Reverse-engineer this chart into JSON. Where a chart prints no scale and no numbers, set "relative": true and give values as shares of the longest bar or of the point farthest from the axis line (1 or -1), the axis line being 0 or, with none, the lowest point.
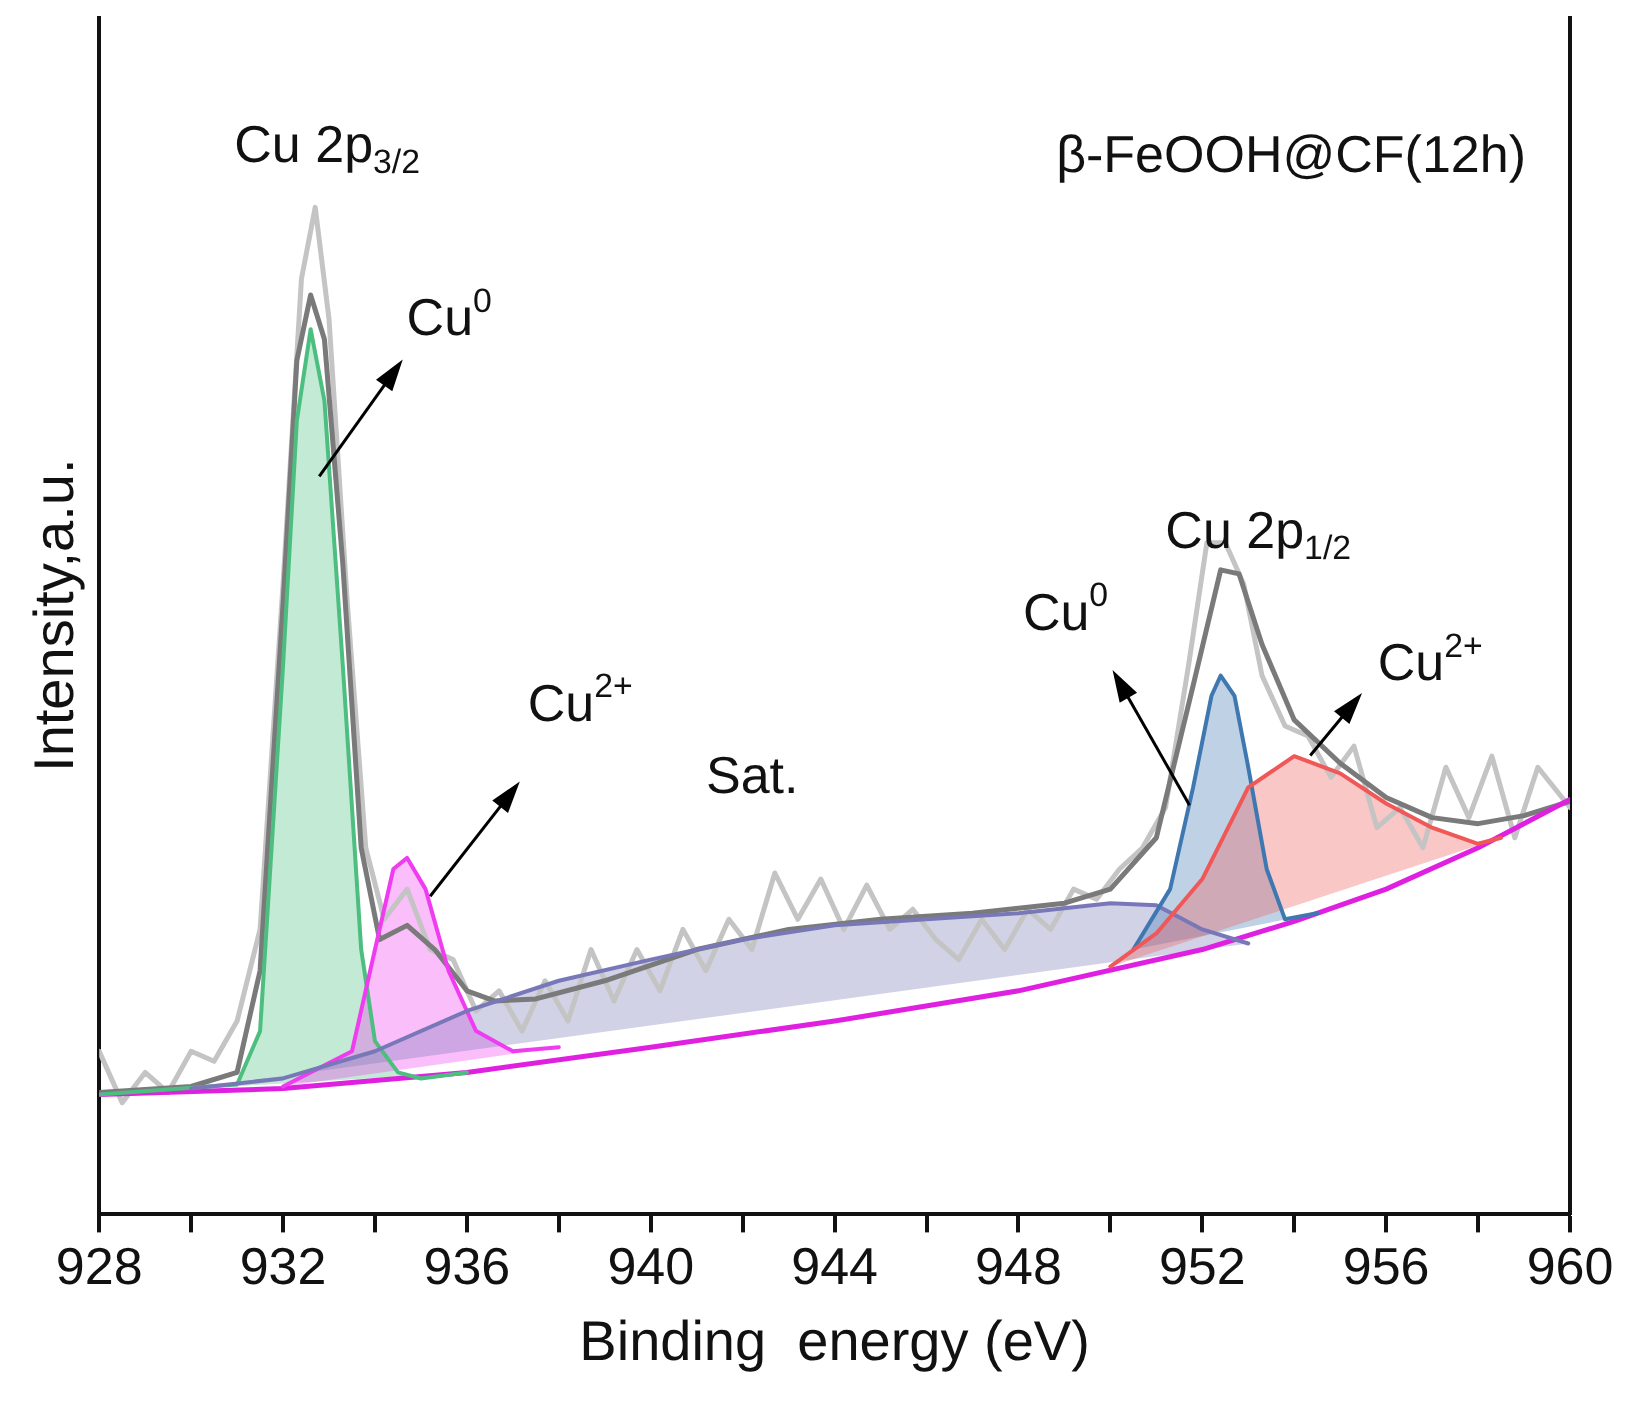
{
  "chart_data": {
    "type": "line",
    "title": "β-FeOOH@CF(12h)",
    "xlabel": "Binding  energy (eV)",
    "ylabel": "Intensity,a.u.",
    "relative": true,
    "grid": false,
    "legend": false,
    "marker": "none",
    "line_style": "solid",
    "xlim": [
      928,
      960
    ],
    "xticks": [
      928,
      {
        "value": 930,
        "label": null
      },
      932,
      {
        "value": 934,
        "label": null
      },
      936,
      {
        "value": 938,
        "label": null
      },
      940,
      {
        "value": 942,
        "label": null
      },
      944,
      {
        "value": 946,
        "label": null
      },
      948,
      {
        "value": 950,
        "label": null
      },
      952,
      {
        "value": 954,
        "label": null
      },
      956,
      {
        "value": 958,
        "label": null
      },
      960
    ],
    "annotations": [
      "Cu 2p$_{3/2}$",
      "Cu$^{0}$",
      "Cu$^{2+}$",
      "Sat.",
      "Cu 2p$_{1/2}$",
      "Cu$^{0}$",
      "Cu$^{2+}$"
    ],
    "series": [
      {
        "color": "#c4c4c4",
        "x": [
          928,
          928.5,
          929,
          929.5,
          930,
          930.5,
          931,
          931.5,
          932,
          932.4,
          932.7,
          933,
          933.4,
          933.8,
          934.2,
          934.7,
          935.2,
          935.7,
          936.2,
          936.7,
          937.2,
          937.7,
          938.2,
          938.7,
          939.2,
          939.7,
          940.2,
          940.7,
          941.2,
          941.7,
          942.2,
          942.7,
          943.2,
          943.7,
          944.2,
          944.7,
          945.2,
          945.7,
          946.2,
          946.7,
          947.2,
          947.7,
          948.2,
          948.7,
          949.2,
          949.7,
          950.2,
          950.7,
          951.2,
          951.7,
          952.1,
          952.5,
          952.9,
          953.3,
          953.8,
          954.3,
          954.8,
          955.3,
          955.8,
          956.3,
          956.8,
          957.3,
          957.8,
          958.3,
          958.8,
          959.3,
          960
        ],
        "values": [
          0.162,
          0.111,
          0.141,
          0.121,
          0.162,
          0.152,
          0.192,
          0.283,
          0.626,
          0.929,
          1,
          0.889,
          0.606,
          0.364,
          0.293,
          0.323,
          0.263,
          0.253,
          0.202,
          0.222,
          0.182,
          0.232,
          0.192,
          0.263,
          0.212,
          0.263,
          0.222,
          0.283,
          0.242,
          0.293,
          0.263,
          0.339,
          0.293,
          0.333,
          0.283,
          0.327,
          0.283,
          0.303,
          0.273,
          0.253,
          0.293,
          0.263,
          0.303,
          0.283,
          0.323,
          0.313,
          0.343,
          0.364,
          0.404,
          0.545,
          0.667,
          0.667,
          0.626,
          0.535,
          0.485,
          0.475,
          0.434,
          0.465,
          0.384,
          0.404,
          0.364,
          0.444,
          0.394,
          0.455,
          0.374,
          0.444,
          0.404
        ]
      },
      {
        "color": "#7a7a7a",
        "x": [
          928,
          930,
          931,
          931.5,
          932,
          932.3,
          932.6,
          932.9,
          933.3,
          933.7,
          934.1,
          934.7,
          935.3,
          936,
          936.6,
          937.5,
          939,
          941,
          943,
          945,
          947,
          949,
          950,
          951,
          951.8,
          952.4,
          952.8,
          953.3,
          954,
          955,
          956,
          957,
          958,
          959,
          960
        ],
        "values": [
          0.121,
          0.127,
          0.141,
          0.242,
          0.606,
          0.848,
          0.913,
          0.869,
          0.646,
          0.364,
          0.273,
          0.287,
          0.263,
          0.222,
          0.212,
          0.214,
          0.232,
          0.263,
          0.283,
          0.293,
          0.299,
          0.309,
          0.323,
          0.374,
          0.525,
          0.64,
          0.636,
          0.566,
          0.491,
          0.448,
          0.414,
          0.394,
          0.388,
          0.396,
          0.41
        ]
      },
      {
        "color": "#e020e0",
        "x": [
          928,
          932,
          936,
          940,
          944,
          948,
          952,
          954,
          956,
          958,
          960
        ],
        "values": [
          0.119,
          0.125,
          0.141,
          0.166,
          0.192,
          0.222,
          0.263,
          0.291,
          0.323,
          0.364,
          0.412
        ]
      },
      {
        "type": "area",
        "color": "#4cbf80",
        "x": [
          928,
          931,
          931.5,
          932,
          932.3,
          932.6,
          932.9,
          933.3,
          933.7,
          934,
          934.5,
          935,
          936
        ],
        "values": [
          0.119,
          0.129,
          0.182,
          0.545,
          0.788,
          0.879,
          0.808,
          0.545,
          0.263,
          0.172,
          0.141,
          0.135,
          0.141
        ]
      },
      {
        "type": "area",
        "color": "#f03cf0",
        "x": [
          932,
          933.5,
          934,
          934.4,
          934.7,
          935.1,
          935.6,
          936.2,
          937,
          938
        ],
        "values": [
          0.127,
          0.162,
          0.263,
          0.343,
          0.354,
          0.323,
          0.242,
          0.182,
          0.162,
          0.166
        ]
      },
      {
        "type": "area",
        "color": "#7878b8",
        "x": [
          930,
          932,
          934,
          936,
          938,
          940,
          942,
          944,
          946,
          948,
          950,
          951,
          952,
          953
        ],
        "values": [
          0.125,
          0.135,
          0.162,
          0.202,
          0.232,
          0.253,
          0.273,
          0.287,
          0.293,
          0.299,
          0.309,
          0.307,
          0.283,
          0.269
        ]
      },
      {
        "type": "area",
        "color": "#3f78b0",
        "x": [
          950.5,
          951.3,
          951.8,
          952.2,
          952.4,
          952.7,
          953,
          953.4,
          953.8,
          954.5
        ],
        "values": [
          0.263,
          0.323,
          0.424,
          0.515,
          0.535,
          0.515,
          0.444,
          0.343,
          0.293,
          0.299
        ]
      },
      {
        "type": "area",
        "color": "#f05858",
        "x": [
          950,
          951,
          952,
          953,
          954,
          955,
          956,
          957,
          958,
          958.5
        ],
        "values": [
          0.246,
          0.279,
          0.333,
          0.424,
          0.455,
          0.438,
          0.408,
          0.384,
          0.368,
          0.374
        ]
      }
    ]
  }
}
